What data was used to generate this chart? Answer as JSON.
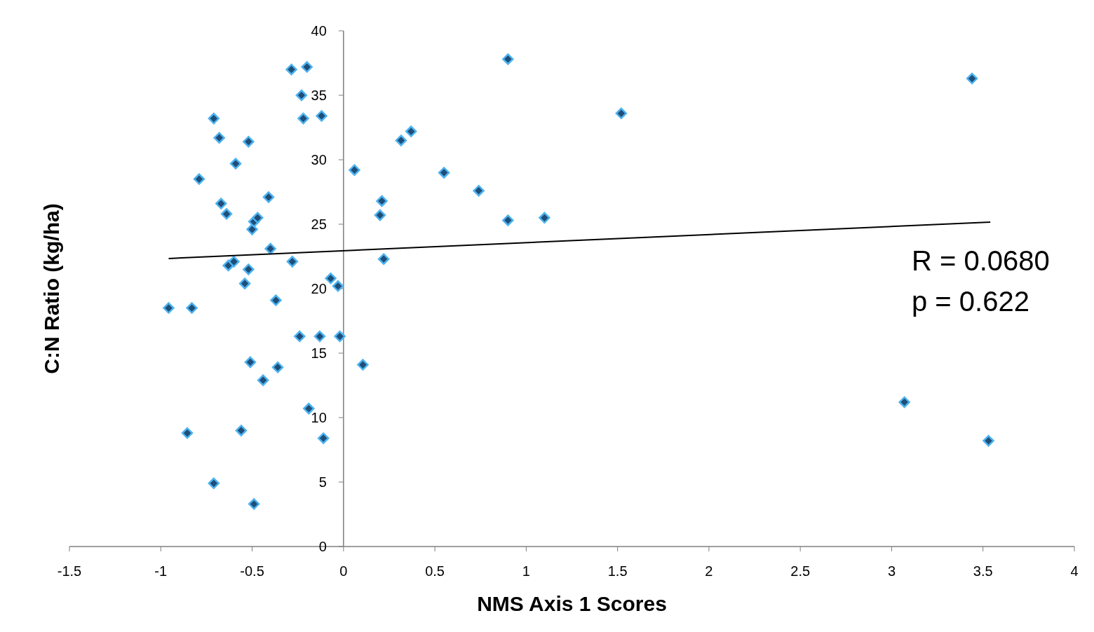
{
  "chart_data": {
    "type": "scatter",
    "xlabel": "NMS Axis 1 Scores",
    "ylabel": "C:N Ratio (kg/ha)",
    "xlim": [
      -1.5,
      4
    ],
    "xticks": [
      -1.5,
      -1,
      -0.5,
      0,
      0.5,
      1,
      1.5,
      2,
      2.5,
      3,
      3.5,
      4
    ],
    "ylim": [
      0,
      40
    ],
    "yticks": [
      0,
      5,
      10,
      15,
      20,
      25,
      30,
      35,
      40
    ],
    "grid": false,
    "marker": "diamond",
    "annotations": [
      "R = 0.0680",
      "p = 0.622"
    ],
    "series": [
      {
        "color": "#1f4e79",
        "x": [
          -0.957,
          -0.83,
          -0.855,
          -0.79,
          -0.71,
          -0.68,
          -0.71,
          -0.67,
          -0.64,
          -0.63,
          -0.6,
          -0.59,
          -0.56,
          -0.54,
          -0.52,
          -0.52,
          -0.51,
          -0.5,
          -0.49,
          -0.49,
          -0.47,
          -0.44,
          -0.41,
          -0.4,
          -0.37,
          -0.36,
          -0.285,
          -0.28,
          -0.24,
          -0.23,
          -0.22,
          -0.2,
          -0.19,
          -0.13,
          -0.12,
          -0.11,
          -0.07,
          -0.03,
          -0.02,
          0.06,
          0.106,
          0.2,
          0.21,
          0.22,
          0.315,
          0.37,
          0.55,
          0.74,
          0.9,
          0.9,
          1.1,
          1.52,
          3.07,
          3.44,
          3.53
        ],
        "values": [
          18.5,
          18.5,
          8.8,
          28.5,
          33.2,
          31.7,
          4.9,
          26.6,
          25.8,
          21.8,
          22.1,
          29.7,
          9.0,
          20.4,
          31.4,
          21.5,
          14.3,
          24.6,
          25.2,
          3.3,
          25.5,
          12.9,
          27.1,
          23.1,
          19.1,
          13.9,
          37.0,
          22.1,
          16.3,
          35.0,
          33.2,
          37.2,
          10.7,
          16.3,
          33.4,
          8.4,
          20.8,
          20.2,
          16.3,
          29.2,
          14.1,
          25.7,
          26.8,
          22.3,
          31.5,
          32.2,
          29.0,
          27.6,
          25.3,
          37.8,
          25.5,
          33.6,
          11.2,
          36.3,
          8.2
        ]
      },
      {
        "type": "line",
        "color": "#000000",
        "marker": "none",
        "x": [
          -0.957,
          3.54
        ],
        "values": [
          22.34,
          25.16
        ]
      }
    ]
  }
}
